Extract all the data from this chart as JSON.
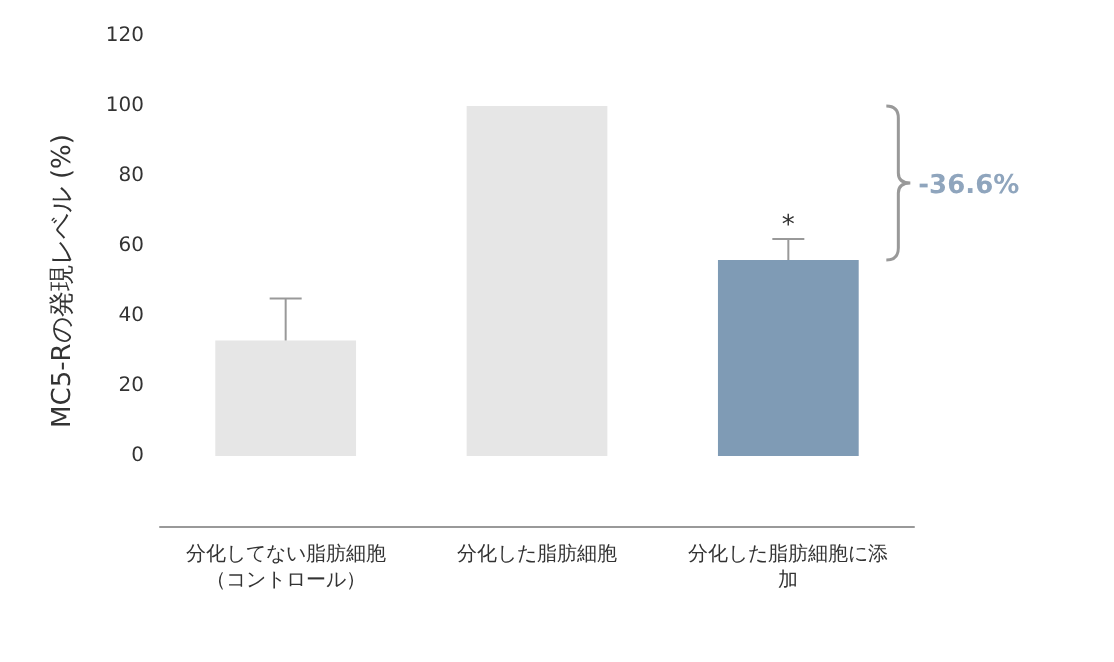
{
  "chart_data": {
    "type": "bar",
    "ylabel": "MC5-Rの発現レベル (%)",
    "categories": [
      "分化してない脂肪細胞（コントロール）",
      "分化した脂肪細胞",
      "分化した脂肪細胞に添加"
    ],
    "values": [
      33,
      100,
      56
    ],
    "colors": [
      "#e6e6e6",
      "#e6e6e6",
      "#7f9bb5"
    ],
    "errors": [
      [
        33,
        45
      ],
      null,
      [
        56,
        62
      ]
    ],
    "ylim": [
      -20,
      120
    ],
    "yticks": [
      0,
      20,
      40,
      60,
      80,
      100,
      120
    ],
    "grid": false,
    "annotations": [
      {
        "text": "*",
        "x": "分化した脂肪細胞に添加",
        "y": 62
      },
      "-36.6%"
    ]
  }
}
